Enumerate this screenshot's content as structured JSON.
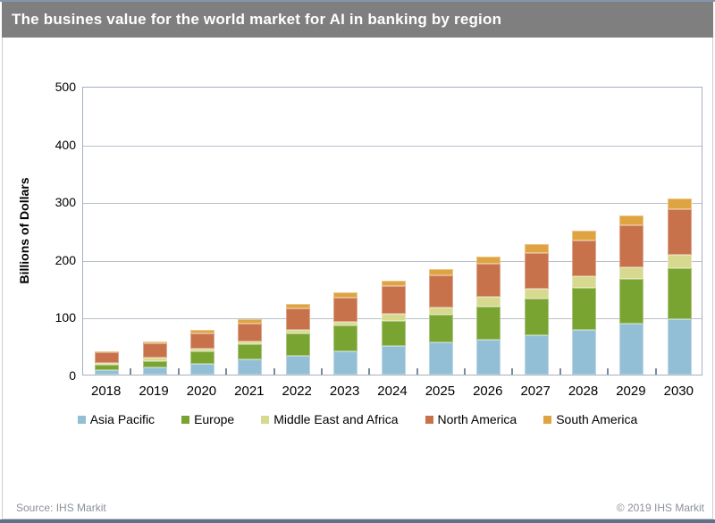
{
  "title_bar": {
    "title": "The busines value for the world market for AI in banking by region"
  },
  "footer": {
    "source": "Source: IHS Markit",
    "copyright": "© 2019 IHS Markit"
  },
  "colors": {
    "title_bar_bg": "#7f7f7f",
    "title_text": "#ffffff",
    "top_line": "#8495a9",
    "bottom_bar": "#5e7187",
    "content_border": "#c9cdd4",
    "plot_border": "#a6b0bf",
    "gridline": "#b9bfc9",
    "category_tick": "#7e8a99",
    "axis_text": "#000000",
    "footer_text": "#8b9099"
  },
  "chart_data": {
    "type": "bar",
    "stacked": true,
    "title": "",
    "xlabel": "",
    "ylabel": "Billions of Dollars",
    "ylim": [
      0,
      500
    ],
    "yticks": [
      0,
      100,
      200,
      300,
      400,
      500
    ],
    "grid": true,
    "legend_position": "bottom",
    "categories": [
      "2018",
      "2019",
      "2020",
      "2021",
      "2022",
      "2023",
      "2024",
      "2025",
      "2026",
      "2027",
      "2028",
      "2029",
      "2030"
    ],
    "series": [
      {
        "name": "Asia Pacific",
        "color": "#92bed6",
        "values": [
          8,
          13,
          19,
          26,
          32,
          41,
          50,
          56,
          61,
          68,
          77,
          88,
          96
        ]
      },
      {
        "name": "Europe",
        "color": "#7aa431",
        "values": [
          9,
          11,
          21,
          26,
          40,
          44,
          43,
          47,
          56,
          63,
          73,
          78,
          88
        ]
      },
      {
        "name": "Middle East and Africa",
        "color": "#d6d98e",
        "values": [
          3,
          5,
          5,
          6,
          6,
          7,
          12,
          13,
          17,
          18,
          20,
          20,
          23
        ]
      },
      {
        "name": "North America",
        "color": "#c8724c",
        "values": [
          18,
          25,
          26,
          30,
          36,
          41,
          49,
          56,
          58,
          62,
          63,
          72,
          80
        ]
      },
      {
        "name": "South America",
        "color": "#dfa442",
        "values": [
          3,
          4,
          6,
          8,
          8,
          10,
          9,
          10,
          12,
          15,
          17,
          17,
          18
        ]
      }
    ],
    "totals": [
      41,
      58,
      77,
      96,
      122,
      143,
      163,
      182,
      204,
      226,
      250,
      275,
      305
    ]
  }
}
